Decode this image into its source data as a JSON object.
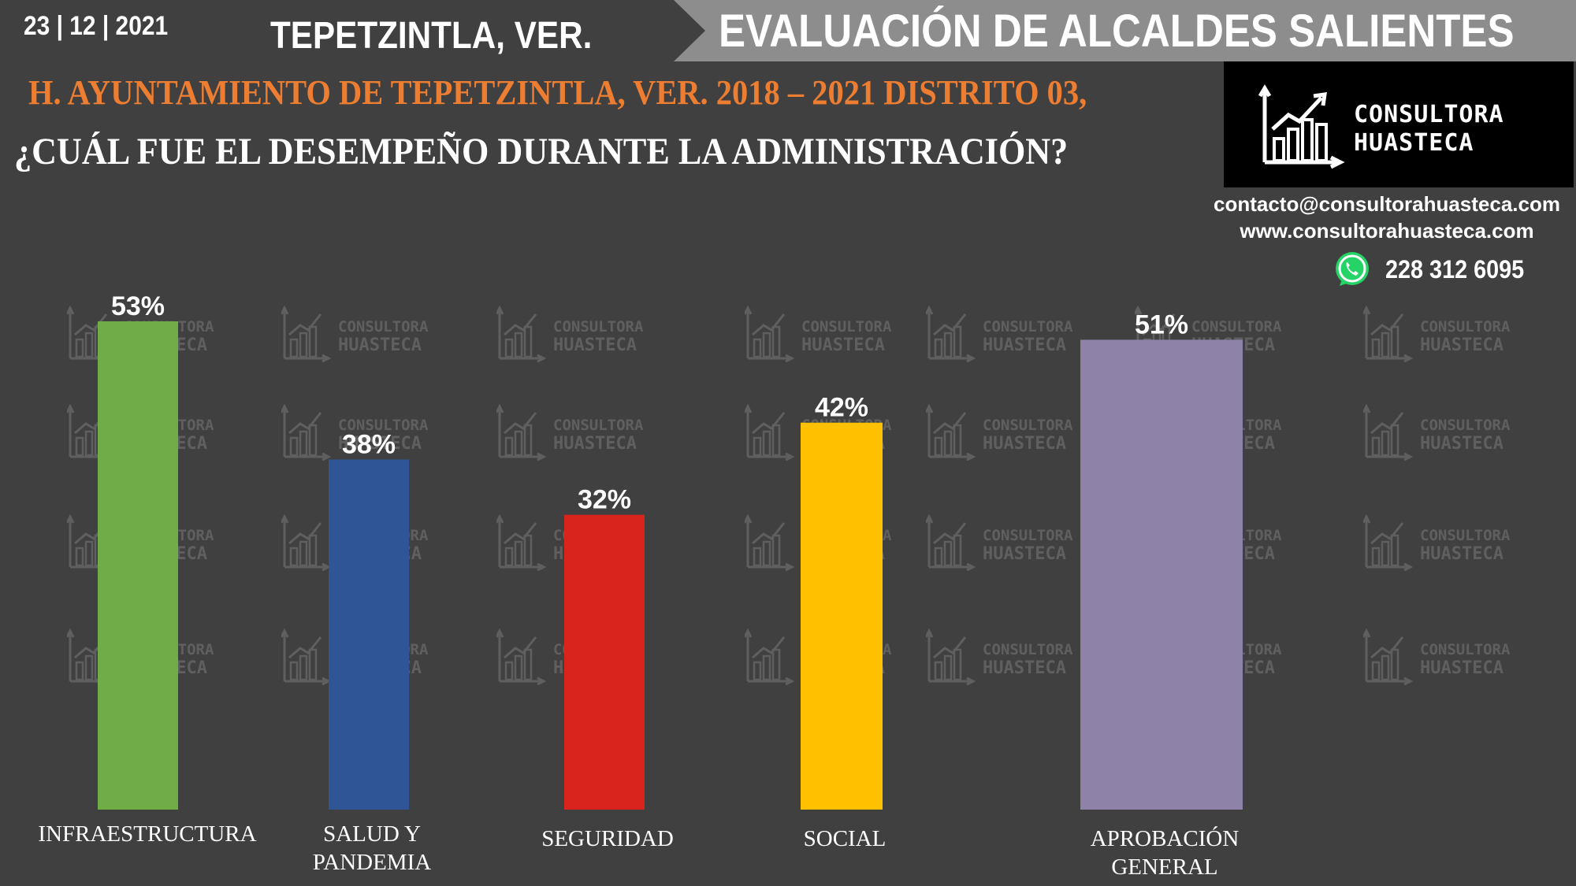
{
  "header": {
    "date": "23 | 12 | 2021",
    "town": "TEPETZINTLA, VER.",
    "banner": "EVALUACIÓN DE ALCALDES SALIENTES",
    "subtitle": "H. AYUNTAMIENTO DE TEPETZINTLA, VER. 2018 – 2021 DISTRITO 03,",
    "question": "¿CUÁL FUE EL DESEMPEÑO DURANTE LA ADMINISTRACIÓN?"
  },
  "brand": {
    "line1": "CONSULTORA",
    "line2": "HUASTECA",
    "logo_icon": "growth-chart-icon",
    "email": "contacto@consultorahuasteca.com",
    "web": "www.consultorahuasteca.com",
    "phone": "228 312 6095",
    "phone_icon": "whatsapp-icon"
  },
  "chart_data": {
    "type": "bar",
    "categories": [
      "INFRAESTRUCTURA",
      "SALUD Y PANDEMIA",
      "SEGURIDAD",
      "SOCIAL",
      "APROBACIÓN GENERAL"
    ],
    "category_lines": [
      [
        "INFRAESTRUCTURA"
      ],
      [
        "SALUD Y",
        "PANDEMIA"
      ],
      [
        "SEGURIDAD"
      ],
      [
        "SOCIAL"
      ],
      [
        "APROBACIÓN",
        "GENERAL"
      ]
    ],
    "values": [
      53,
      38,
      32,
      42,
      51
    ],
    "value_labels": [
      "53%",
      "38%",
      "32%",
      "42%",
      "51%"
    ],
    "colors": [
      "#70ad47",
      "#2f5597",
      "#d9231d",
      "#ffc000",
      "#8e82a8"
    ],
    "unit": "%",
    "ylim": [
      0,
      53
    ],
    "grid": false,
    "legend": "none"
  }
}
